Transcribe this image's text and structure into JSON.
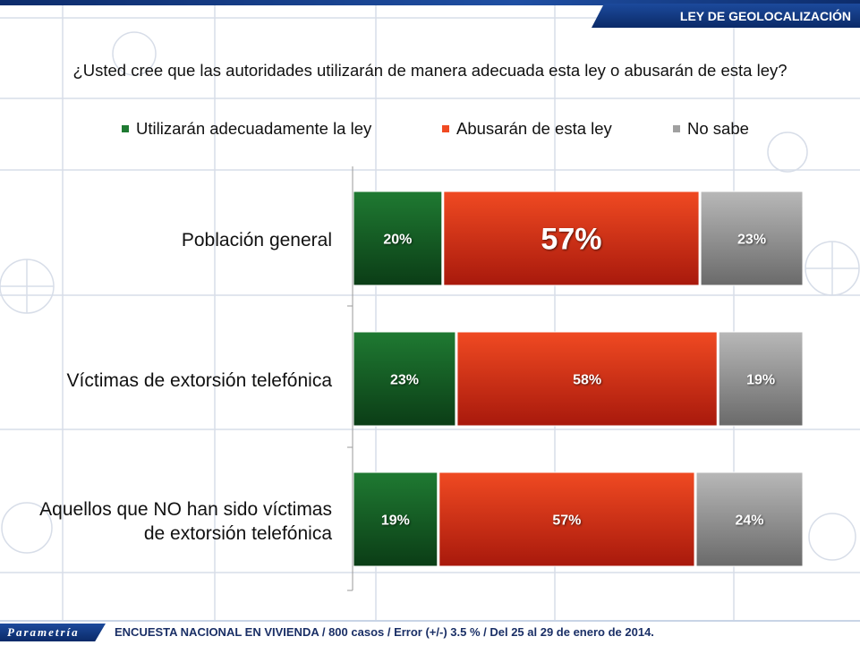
{
  "header": {
    "section_title": "LEY DE GEOLOCALIZACIÓN"
  },
  "question": "¿Usted cree que las autoridades utilizarán de manera adecuada esta ley o abusarán de esta ley?",
  "footer": {
    "logo_text": "Parametría",
    "note": "ENCUESTA NACIONAL EN VIVIENDA / 800 casos / Error (+/-) 3.5 % / Del 25 al 29 de enero de 2014."
  },
  "colors": {
    "green": "#1f7a32",
    "green_dark": "#0b3d16",
    "red": "#f04a22",
    "red_dark": "#a8190c",
    "gray": "#b8b8b8",
    "gray_dark": "#6a6a6a",
    "accent_blue": "#0b2a68"
  },
  "chart_data": {
    "type": "bar",
    "orientation": "horizontal",
    "stacked": true,
    "categories": [
      "Población general",
      "Víctimas de extorsión telefónica",
      "Aquellos que NO han sido víctimas de extorsión telefónica"
    ],
    "category_lines": [
      [
        "Población general"
      ],
      [
        "Víctimas de extorsión telefónica"
      ],
      [
        "Aquellos que NO han sido víctimas",
        "de extorsión telefónica"
      ]
    ],
    "series": [
      {
        "name": "Utilizarán adecuadamente la ley",
        "values": [
          20,
          23,
          19
        ],
        "labels": [
          "20%",
          "23%",
          "19%"
        ],
        "color": "#1f7a32"
      },
      {
        "name": "Abusarán de esta ley",
        "values": [
          57,
          58,
          57
        ],
        "labels": [
          "57%",
          "58%",
          "57%"
        ],
        "color": "#f04a22"
      },
      {
        "name": "No sabe",
        "values": [
          23,
          19,
          24
        ],
        "labels": [
          "23%",
          "19%",
          "24%"
        ],
        "color": "#a0a0a0"
      }
    ],
    "xlim": [
      0,
      100
    ],
    "legend_position": "top",
    "grid": false
  }
}
